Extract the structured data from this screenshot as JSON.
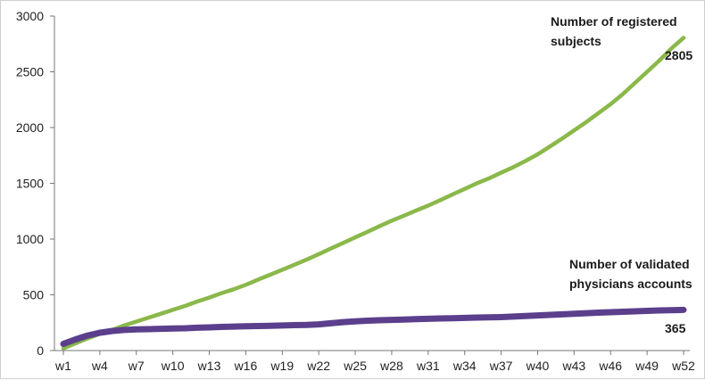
{
  "chart_data": {
    "type": "line",
    "ylim": [
      0,
      3000
    ],
    "yticks": [
      "0",
      "500",
      "1000",
      "1500",
      "2000",
      "2500",
      "3000"
    ],
    "x": [
      "w1",
      "w2",
      "w3",
      "w4",
      "w5",
      "w6",
      "w7",
      "w8",
      "w9",
      "w10",
      "w11",
      "w12",
      "w13",
      "w14",
      "w15",
      "w16",
      "w17",
      "w18",
      "w19",
      "w20",
      "w21",
      "w22",
      "w23",
      "w24",
      "w25",
      "w26",
      "w27",
      "w28",
      "w29",
      "w30",
      "w31",
      "w32",
      "w33",
      "w34",
      "w35",
      "w36",
      "w37",
      "w38",
      "w39",
      "w40",
      "w41",
      "w42",
      "w43",
      "w44",
      "w45",
      "w46",
      "w47",
      "w48",
      "w49",
      "w50",
      "w51",
      "w52"
    ],
    "xtick_labels": [
      "w1",
      "w4",
      "w7",
      "w10",
      "w13",
      "w16",
      "w19",
      "w22",
      "w25",
      "w28",
      "w31",
      "w34",
      "w37",
      "w40",
      "w43",
      "w46",
      "w49",
      "w52"
    ],
    "grid": false,
    "series": [
      {
        "color": "#8ab84a",
        "values": [
          20,
          65,
          110,
          150,
          185,
          225,
          260,
          295,
          330,
          365,
          400,
          440,
          475,
          515,
          550,
          590,
          635,
          680,
          725,
          770,
          815,
          865,
          915,
          965,
          1015,
          1065,
          1115,
          1165,
          1210,
          1255,
          1300,
          1350,
          1400,
          1450,
          1500,
          1545,
          1595,
          1645,
          1700,
          1760,
          1830,
          1900,
          1975,
          2050,
          2130,
          2210,
          2300,
          2400,
          2500,
          2600,
          2710,
          2805
        ]
      },
      {
        "color": "#5b3f8c",
        "values": [
          60,
          100,
          135,
          160,
          175,
          185,
          190,
          192,
          195,
          198,
          200,
          205,
          208,
          212,
          215,
          218,
          220,
          222,
          225,
          228,
          230,
          235,
          245,
          255,
          262,
          268,
          272,
          275,
          278,
          282,
          285,
          288,
          290,
          293,
          296,
          298,
          300,
          305,
          310,
          315,
          320,
          325,
          330,
          335,
          340,
          344,
          348,
          352,
          356,
          360,
          362,
          365
        ]
      }
    ],
    "annotations": {
      "registered_label_line1": "Number of registered",
      "registered_label_line2": "subjects",
      "registered_value": "2805",
      "physicians_label_line1": "Number of validated",
      "physicians_label_line2": "physicians accounts",
      "physicians_value": "365"
    }
  }
}
